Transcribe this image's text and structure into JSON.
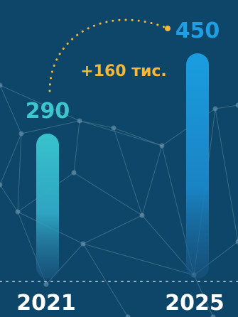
{
  "chart_data": {
    "type": "bar",
    "categories": [
      "2021",
      "2025"
    ],
    "values": [
      290,
      450
    ],
    "value_labels": [
      "290",
      "450"
    ],
    "annotation": "+160 тис.",
    "ylim": [
      0,
      500
    ],
    "grid": false,
    "colors": {
      "background": "#0d4668",
      "bar_2021": "#38c3cc",
      "bar_2025": "#1a9ee0",
      "label_2021": "#3ec6cf",
      "label_2025": "#1f9fe3",
      "annotation": "#f5b83a",
      "network": "#5d8aa5"
    }
  }
}
